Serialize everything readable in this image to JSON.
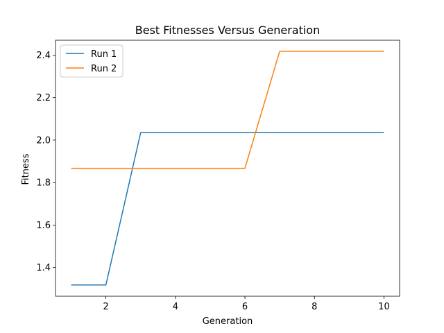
{
  "chart_data": {
    "type": "line",
    "title": "Best Fitnesses Versus Generation",
    "xlabel": "Generation",
    "ylabel": "Fitness",
    "xlim": [
      0.55,
      10.45
    ],
    "ylim": [
      1.265,
      2.47
    ],
    "xticks": [
      2,
      4,
      6,
      8,
      10
    ],
    "yticks": [
      1.4,
      1.6,
      1.8,
      2.0,
      2.2,
      2.4
    ],
    "ytick_labels": [
      "1.4",
      "1.6",
      "1.8",
      "2.0",
      "2.2",
      "2.4"
    ],
    "grid": false,
    "legend_position": "top-left",
    "x": [
      1,
      2,
      3,
      4,
      5,
      6,
      7,
      8,
      9,
      10
    ],
    "series": [
      {
        "name": "Run 1",
        "color": "#1f77b4",
        "values": [
          1.318,
          1.318,
          2.035,
          2.035,
          2.035,
          2.035,
          2.035,
          2.035,
          2.035,
          2.035
        ]
      },
      {
        "name": "Run 2",
        "color": "#ff7f0e",
        "values": [
          1.867,
          1.867,
          1.867,
          1.867,
          1.867,
          1.867,
          2.418,
          2.418,
          2.418,
          2.418
        ]
      }
    ]
  }
}
